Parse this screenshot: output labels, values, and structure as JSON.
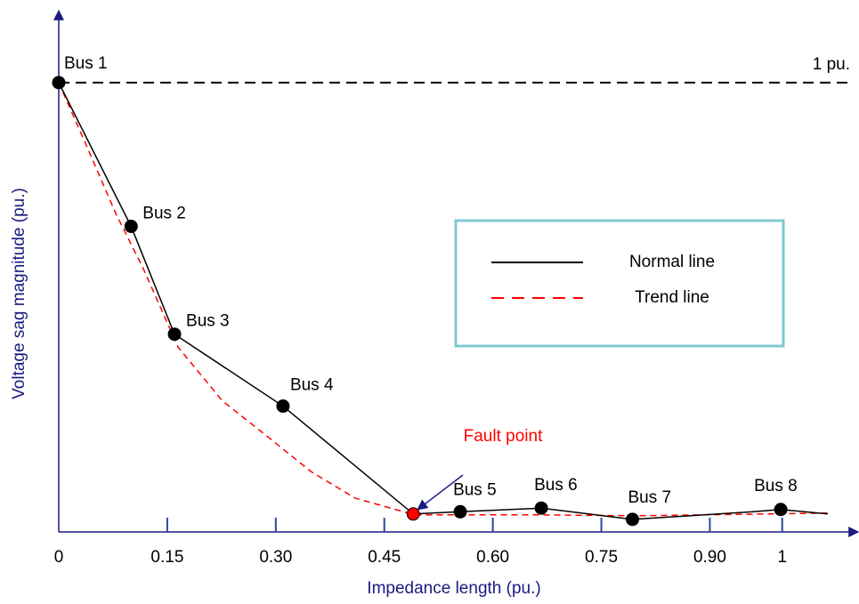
{
  "chart_data": {
    "type": "line",
    "x_label": "Impedance length (pu.)",
    "y_label": "Voltage sag magnitude (pu.)",
    "xlim": [
      0,
      1.1
    ],
    "ylim": [
      0,
      1.16
    ],
    "xticks": [
      0,
      0.15,
      {
        "value": 0.3,
        "label": "0.30"
      },
      0.45,
      {
        "value": 0.6,
        "label": "0.60"
      },
      0.75,
      {
        "value": 0.9,
        "label": "0.90"
      },
      1
    ],
    "reference_line": {
      "value": 1,
      "label": "1 pu."
    },
    "series": [
      {
        "name": "Normal line",
        "color": "#000000",
        "dashed": false,
        "x": [
          0,
          0.1,
          0.16,
          0.31,
          0.49,
          0.555,
          0.667,
          0.793,
          0.96,
          0.998,
          1.063
        ],
        "values": [
          1,
          0.68,
          0.44,
          0.28,
          0.04,
          0.045,
          0.053,
          0.028,
          0.045,
          0.05,
          0.04
        ]
      },
      {
        "name": "Trend line",
        "color": "#ff0000",
        "dashed": true,
        "x": [
          0,
          0.042,
          0.079,
          0.116,
          0.165,
          0.226,
          0.288,
          0.349,
          0.41,
          0.492,
          0.657,
          0.8,
          1.063
        ],
        "values": [
          1,
          0.846,
          0.708,
          0.589,
          0.411,
          0.292,
          0.213,
          0.134,
          0.075,
          0.038,
          0.038,
          0.036,
          0.042
        ]
      }
    ],
    "marker_color": "#000000",
    "markers": [
      {
        "label": "Bus 1",
        "x": 0,
        "y": 1
      },
      {
        "label": "Bus 2",
        "x": 0.1,
        "y": 0.68
      },
      {
        "label": "Bus 3",
        "x": 0.16,
        "y": 0.44
      },
      {
        "label": "Bus 4",
        "x": 0.31,
        "y": 0.28
      },
      {
        "label": "Bus 5",
        "x": 0.555,
        "y": 0.045
      },
      {
        "label": "Bus 6",
        "x": 0.667,
        "y": 0.053
      },
      {
        "label": "Bus 7",
        "x": 0.793,
        "y": 0.028
      },
      {
        "label": "Bus 8",
        "x": 0.998,
        "y": 0.05
      }
    ],
    "fault_point": {
      "label": "Fault point",
      "x": 0.49,
      "y": 0.04,
      "color": "#ff0000"
    },
    "legend": "upper right"
  }
}
